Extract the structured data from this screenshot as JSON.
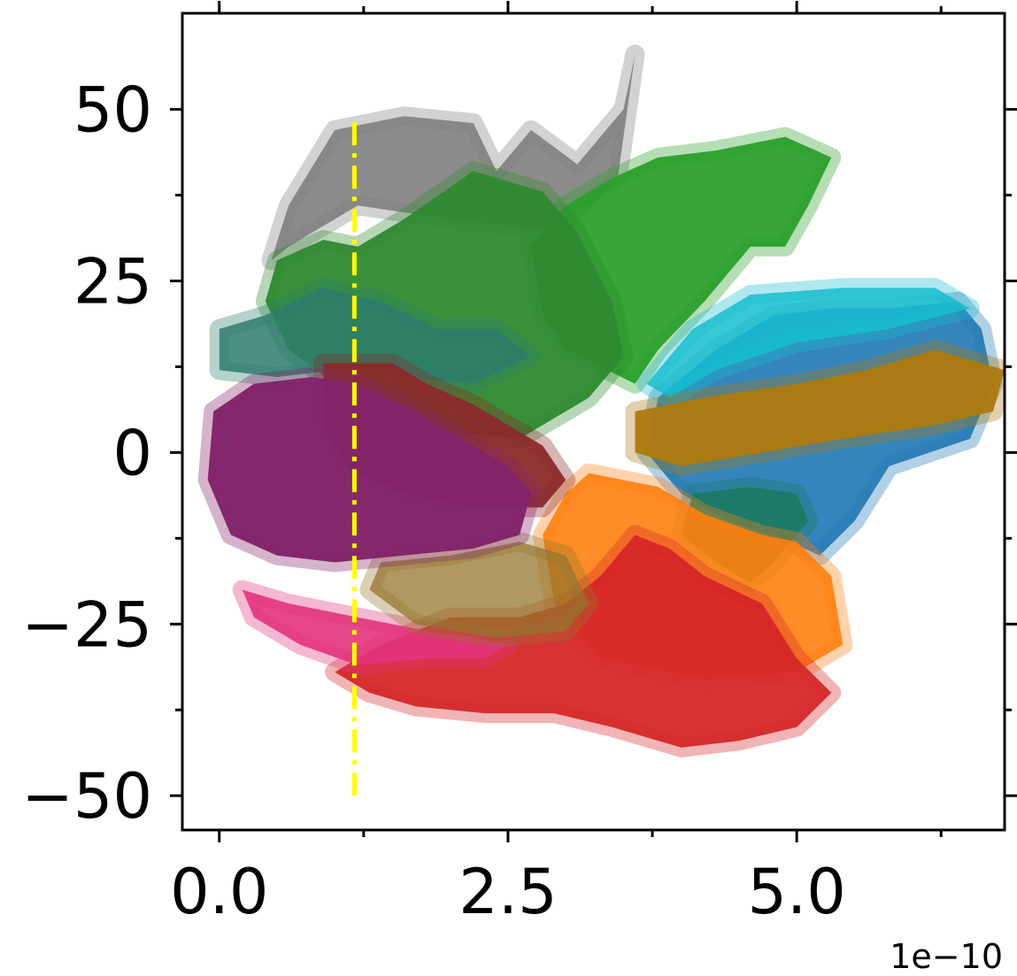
{
  "chart_data": {
    "type": "scatter",
    "title": "",
    "xlabel": "",
    "ylabel": "",
    "x_offset_label": "1e−10",
    "xlim": [
      -0.32,
      6.8
    ],
    "ylim": [
      -55,
      64
    ],
    "x_major_ticks": [
      0.0,
      2.5,
      5.0
    ],
    "x_major_tick_labels": [
      "0.0",
      "2.5",
      "5.0"
    ],
    "x_minor_ticks": [
      1.25,
      3.75,
      6.25
    ],
    "y_major_ticks": [
      50,
      25,
      0,
      -25,
      -50
    ],
    "y_major_tick_labels": [
      "50",
      "25",
      "0",
      "−25",
      "−50"
    ],
    "y_minor_ticks": [
      37.5,
      12.5,
      -12.5,
      -37.5
    ],
    "grid": false,
    "legend": "none",
    "marker": "x",
    "series": [
      {
        "color": "#7f7f7f",
        "opacity": 0.9,
        "outline": [
          [
            0.6,
            36
          ],
          [
            1.0,
            47
          ],
          [
            1.6,
            49
          ],
          [
            2.2,
            48
          ],
          [
            2.4,
            41
          ],
          [
            2.7,
            47
          ],
          [
            3.1,
            42
          ],
          [
            3.5,
            50
          ],
          [
            3.6,
            58
          ],
          [
            3.45,
            40
          ],
          [
            3.0,
            32
          ],
          [
            2.0,
            34
          ],
          [
            1.2,
            36
          ],
          [
            0.6,
            30
          ],
          [
            0.45,
            28
          ]
        ]
      },
      {
        "color": "#2ca02c",
        "opacity": 0.95,
        "outline": [
          [
            2.7,
            30
          ],
          [
            3.0,
            36
          ],
          [
            3.4,
            40
          ],
          [
            3.8,
            43
          ],
          [
            4.3,
            44
          ],
          [
            4.9,
            46
          ],
          [
            5.3,
            43
          ],
          [
            5.1,
            36
          ],
          [
            4.9,
            30
          ],
          [
            4.6,
            30
          ],
          [
            4.2,
            22
          ],
          [
            3.8,
            15
          ],
          [
            3.6,
            10
          ],
          [
            3.0,
            15
          ],
          [
            2.8,
            20
          ]
        ]
      },
      {
        "color": "#2f8a2f",
        "opacity": 0.95,
        "outline": [
          [
            0.5,
            28
          ],
          [
            0.9,
            31
          ],
          [
            1.2,
            30
          ],
          [
            1.6,
            34
          ],
          [
            2.2,
            41
          ],
          [
            2.8,
            38
          ],
          [
            3.1,
            32
          ],
          [
            3.4,
            22
          ],
          [
            3.5,
            14
          ],
          [
            3.2,
            8
          ],
          [
            2.6,
            2
          ],
          [
            2.0,
            3
          ],
          [
            1.5,
            8
          ],
          [
            1.0,
            10
          ],
          [
            0.6,
            15
          ],
          [
            0.4,
            22
          ]
        ]
      },
      {
        "color": "#1f77b4",
        "opacity": 0.9,
        "outline": [
          [
            3.8,
            8
          ],
          [
            4.3,
            15
          ],
          [
            4.8,
            20
          ],
          [
            5.3,
            21
          ],
          [
            5.8,
            21
          ],
          [
            6.4,
            22
          ],
          [
            6.6,
            18
          ],
          [
            6.7,
            10
          ],
          [
            6.5,
            2
          ],
          [
            5.8,
            -2
          ],
          [
            5.5,
            -10
          ],
          [
            5.2,
            -15
          ],
          [
            4.8,
            -12
          ],
          [
            4.4,
            -10
          ],
          [
            4.0,
            -6
          ],
          [
            3.7,
            0
          ]
        ]
      },
      {
        "color": "#17becf",
        "opacity": 0.85,
        "outline": [
          [
            3.7,
            10
          ],
          [
            4.1,
            18
          ],
          [
            4.6,
            23
          ],
          [
            5.4,
            24
          ],
          [
            6.2,
            24
          ],
          [
            6.5,
            21
          ],
          [
            5.8,
            18
          ],
          [
            5.0,
            16
          ],
          [
            4.3,
            12
          ],
          [
            3.9,
            8
          ]
        ]
      },
      {
        "color": "#ad7a10",
        "opacity": 0.97,
        "outline": [
          [
            3.6,
            6
          ],
          [
            4.2,
            8
          ],
          [
            5.0,
            10
          ],
          [
            5.6,
            12
          ],
          [
            6.2,
            15
          ],
          [
            6.8,
            12
          ],
          [
            6.7,
            6
          ],
          [
            6.2,
            4
          ],
          [
            5.4,
            2
          ],
          [
            4.7,
            0
          ],
          [
            4.0,
            -2
          ],
          [
            3.6,
            0
          ]
        ]
      },
      {
        "color": "#1a7a63",
        "opacity": 0.9,
        "outline": [
          [
            4.1,
            -6
          ],
          [
            4.6,
            -5
          ],
          [
            5.0,
            -6
          ],
          [
            5.1,
            -10
          ],
          [
            4.8,
            -16
          ],
          [
            4.6,
            -19
          ],
          [
            4.3,
            -16
          ],
          [
            4.0,
            -12
          ]
        ]
      },
      {
        "color": "#ff7f0e",
        "opacity": 0.9,
        "outline": [
          [
            3.2,
            -3
          ],
          [
            3.8,
            -5
          ],
          [
            4.2,
            -9
          ],
          [
            4.7,
            -12
          ],
          [
            5.0,
            -13
          ],
          [
            5.3,
            -18
          ],
          [
            5.4,
            -28
          ],
          [
            5.0,
            -32
          ],
          [
            4.2,
            -33
          ],
          [
            3.3,
            -30
          ],
          [
            2.9,
            -22
          ],
          [
            2.8,
            -12
          ],
          [
            3.0,
            -6
          ]
        ]
      },
      {
        "color": "#d62728",
        "opacity": 0.95,
        "outline": [
          [
            1.4,
            -28
          ],
          [
            2.0,
            -24
          ],
          [
            2.6,
            -24
          ],
          [
            3.0,
            -22
          ],
          [
            3.3,
            -18
          ],
          [
            3.6,
            -12
          ],
          [
            3.9,
            -14
          ],
          [
            4.2,
            -18
          ],
          [
            4.7,
            -22
          ],
          [
            5.0,
            -30
          ],
          [
            5.3,
            -35
          ],
          [
            5.0,
            -40
          ],
          [
            4.5,
            -42
          ],
          [
            4.0,
            -43
          ],
          [
            3.4,
            -40
          ],
          [
            2.9,
            -38
          ],
          [
            2.3,
            -38
          ],
          [
            1.7,
            -37
          ],
          [
            1.3,
            -35
          ],
          [
            1.0,
            -32
          ]
        ]
      },
      {
        "color": "#e3337e",
        "opacity": 0.9,
        "outline": [
          [
            0.2,
            -20
          ],
          [
            0.6,
            -22
          ],
          [
            1.2,
            -24
          ],
          [
            1.8,
            -26
          ],
          [
            2.2,
            -27
          ],
          [
            2.5,
            -28
          ],
          [
            2.3,
            -30
          ],
          [
            1.8,
            -30
          ],
          [
            1.2,
            -31
          ],
          [
            0.7,
            -28
          ],
          [
            0.3,
            -24
          ]
        ]
      },
      {
        "color": "#96762e",
        "opacity": 0.75,
        "outline": [
          [
            1.4,
            -16
          ],
          [
            2.0,
            -15
          ],
          [
            2.6,
            -13
          ],
          [
            3.0,
            -15
          ],
          [
            3.2,
            -22
          ],
          [
            3.0,
            -26
          ],
          [
            2.4,
            -27
          ],
          [
            1.7,
            -25
          ],
          [
            1.3,
            -20
          ]
        ]
      },
      {
        "color": "#2e7d6d",
        "opacity": 0.85,
        "outline": [
          [
            0.0,
            18
          ],
          [
            0.4,
            20
          ],
          [
            0.9,
            24
          ],
          [
            1.4,
            22
          ],
          [
            1.9,
            18
          ],
          [
            2.4,
            18
          ],
          [
            2.7,
            14
          ],
          [
            2.2,
            10
          ],
          [
            1.6,
            11
          ],
          [
            1.0,
            12
          ],
          [
            0.5,
            11
          ],
          [
            0.0,
            12
          ]
        ]
      },
      {
        "color": "#8b2a2a",
        "opacity": 0.95,
        "outline": [
          [
            0.9,
            13
          ],
          [
            1.5,
            13
          ],
          [
            1.8,
            10
          ],
          [
            2.2,
            7
          ],
          [
            2.5,
            4
          ],
          [
            2.8,
            1
          ],
          [
            3.0,
            -4
          ],
          [
            2.8,
            -8
          ],
          [
            2.2,
            -8
          ],
          [
            1.6,
            -6
          ],
          [
            1.1,
            -2
          ],
          [
            0.9,
            4
          ]
        ]
      },
      {
        "color": "#83246a",
        "opacity": 0.98,
        "outline": [
          [
            -0.05,
            6
          ],
          [
            0.3,
            10
          ],
          [
            0.8,
            11
          ],
          [
            1.2,
            10
          ],
          [
            1.7,
            6
          ],
          [
            2.1,
            2
          ],
          [
            2.5,
            -2
          ],
          [
            2.7,
            -6
          ],
          [
            2.6,
            -12
          ],
          [
            2.2,
            -14
          ],
          [
            1.6,
            -15
          ],
          [
            1.0,
            -16
          ],
          [
            0.5,
            -15
          ],
          [
            0.1,
            -12
          ],
          [
            -0.1,
            -4
          ]
        ]
      }
    ],
    "annotations": [
      {
        "type": "vline",
        "style": "dash-dot",
        "color": "#ffff00",
        "x": 1.17,
        "y_from": -50,
        "y_to": 49
      }
    ]
  }
}
